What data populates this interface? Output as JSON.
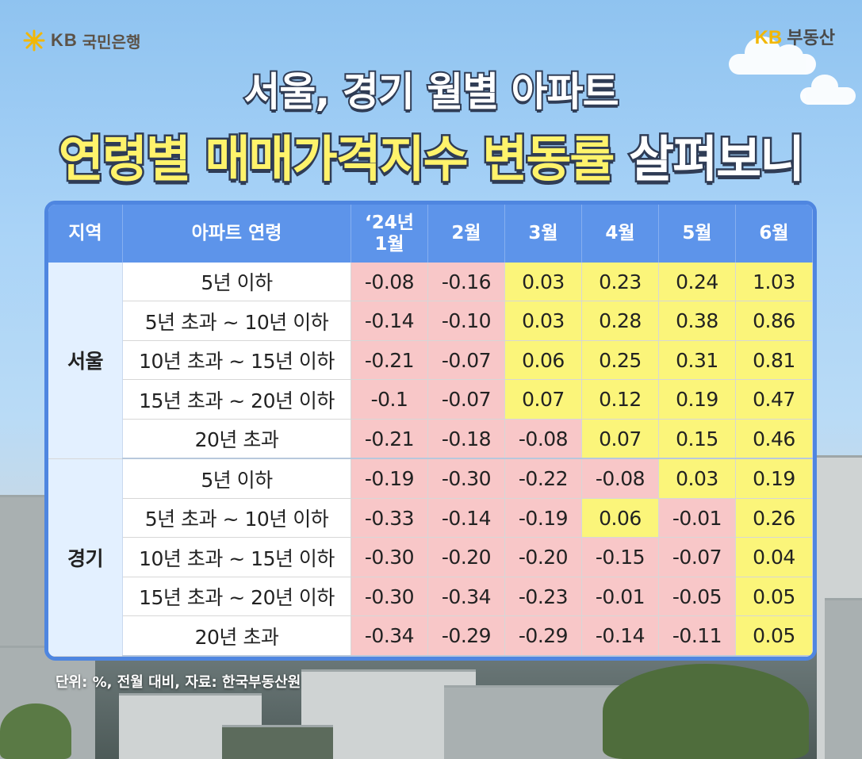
{
  "logo_left": {
    "brand": "KB",
    "name": "국민은행",
    "icon": "kb-star-icon"
  },
  "logo_right": {
    "brand": "KB",
    "name": "부동산"
  },
  "title_line1": "서울, 경기 월별 아파트",
  "title_line2_part1": "연령별 매매가격지수 변동률",
  "title_line2_part2": "살펴보니",
  "footnote": "단위: %, 전월 대비, 자료: 한국부동산원",
  "colors": {
    "header": "#5d94ea",
    "border": "#4f86e0",
    "negative": "#f8c7c8",
    "positive": "#fbf57a",
    "region": "#e3f0ff"
  },
  "chart_data": {
    "type": "table",
    "columns": [
      "지역",
      "아파트 연령",
      "‘24년 1월",
      "2월",
      "3월",
      "4월",
      "5월",
      "6월"
    ],
    "groups": [
      {
        "region": "서울",
        "rows": [
          {
            "age": "5년 이하",
            "values": [
              "-0.08",
              "-0.16",
              "0.03",
              "0.23",
              "0.24",
              "1.03"
            ]
          },
          {
            "age": "5년 초과 ~ 10년 이하",
            "values": [
              "-0.14",
              "-0.10",
              "0.03",
              "0.28",
              "0.38",
              "0.86"
            ]
          },
          {
            "age": "10년 초과 ~ 15년 이하",
            "values": [
              "-0.21",
              "-0.07",
              "0.06",
              "0.25",
              "0.31",
              "0.81"
            ]
          },
          {
            "age": "15년 초과 ~ 20년 이하",
            "values": [
              "-0.1",
              "-0.07",
              "0.07",
              "0.12",
              "0.19",
              "0.47"
            ]
          },
          {
            "age": "20년 초과",
            "values": [
              "-0.21",
              "-0.18",
              "-0.08",
              "0.07",
              "0.15",
              "0.46"
            ]
          }
        ]
      },
      {
        "region": "경기",
        "rows": [
          {
            "age": "5년 이하",
            "values": [
              "-0.19",
              "-0.30",
              "-0.22",
              "-0.08",
              "0.03",
              "0.19"
            ]
          },
          {
            "age": "5년 초과 ~ 10년 이하",
            "values": [
              "-0.33",
              "-0.14",
              "-0.19",
              "0.06",
              "-0.01",
              "0.26"
            ]
          },
          {
            "age": "10년 초과 ~ 15년 이하",
            "values": [
              "-0.30",
              "-0.20",
              "-0.20",
              "-0.15",
              "-0.07",
              "0.04"
            ]
          },
          {
            "age": "15년 초과 ~ 20년 이하",
            "values": [
              "-0.30",
              "-0.34",
              "-0.23",
              "-0.01",
              "-0.05",
              "0.05"
            ]
          },
          {
            "age": "20년 초과",
            "values": [
              "-0.34",
              "-0.29",
              "-0.29",
              "-0.14",
              "-0.11",
              "0.05"
            ]
          }
        ]
      }
    ]
  }
}
